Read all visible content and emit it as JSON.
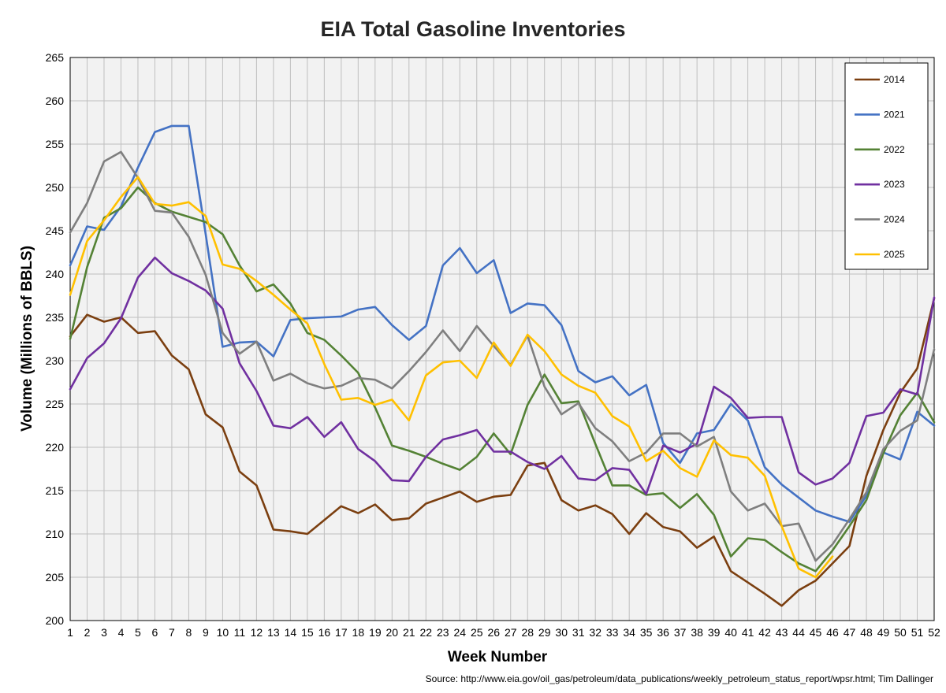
{
  "chart_data": {
    "type": "line",
    "title": "EIA Total Gasoline Inventories",
    "xlabel": "Week Number",
    "ylabel": "Volume (Millions of BBLS)",
    "source": "Source: http://www.eia.gov/oil_gas/petroleum/data_publications/weekly_petroleum_status_report/wpsr.html; Tim Dallinger",
    "xlim": [
      1,
      52
    ],
    "ylim": [
      200,
      265
    ],
    "yticks": [
      200,
      205,
      210,
      215,
      220,
      225,
      230,
      235,
      240,
      245,
      250,
      255,
      260,
      265
    ],
    "grid": true,
    "legend_position": "top-right",
    "x": [
      1,
      2,
      3,
      4,
      5,
      6,
      7,
      8,
      9,
      10,
      11,
      12,
      13,
      14,
      15,
      16,
      17,
      18,
      19,
      20,
      21,
      22,
      23,
      24,
      25,
      26,
      27,
      28,
      29,
      30,
      31,
      32,
      33,
      34,
      35,
      36,
      37,
      38,
      39,
      40,
      41,
      42,
      43,
      44,
      45,
      46,
      47,
      48,
      49,
      50,
      51,
      52
    ],
    "series": [
      {
        "name": "2014",
        "color": "#7B3F10",
        "values": [
          232.8,
          235.3,
          234.5,
          235.0,
          233.2,
          233.4,
          230.6,
          229.0,
          223.8,
          222.3,
          217.2,
          215.6,
          210.5,
          210.3,
          210.0,
          211.6,
          213.2,
          212.4,
          213.4,
          211.6,
          211.8,
          213.5,
          214.2,
          214.9,
          213.7,
          214.3,
          214.5,
          217.9,
          218.2,
          213.9,
          212.7,
          213.3,
          212.3,
          210.0,
          212.4,
          210.8,
          210.3,
          208.4,
          209.7,
          205.7,
          204.4,
          203.1,
          201.7,
          203.5,
          204.6,
          206.6,
          208.6,
          216.7,
          222.0,
          226.3,
          229.1,
          237.2
        ]
      },
      {
        "name": "2021",
        "color": "#4472C4",
        "values": [
          241.0,
          245.5,
          245.1,
          247.8,
          252.3,
          256.4,
          257.1,
          257.1,
          244.6,
          231.6,
          232.1,
          232.2,
          230.5,
          234.7,
          234.9,
          235.0,
          235.1,
          235.9,
          236.2,
          234.1,
          232.4,
          234.0,
          241.0,
          243.0,
          240.1,
          241.6,
          235.5,
          236.6,
          236.4,
          234.1,
          228.8,
          227.5,
          228.2,
          226.0,
          227.2,
          220.5,
          218.2,
          221.6,
          222.0,
          225.0,
          223.1,
          217.7,
          215.7,
          214.2,
          212.7,
          212.0,
          211.4,
          214.4,
          219.4,
          218.6,
          224.1,
          222.5
        ]
      },
      {
        "name": "2022",
        "color": "#548235",
        "values": [
          232.5,
          240.8,
          246.5,
          247.6,
          250.0,
          248.2,
          247.2,
          246.6,
          246.0,
          244.6,
          241.0,
          238.0,
          238.8,
          236.6,
          233.2,
          232.4,
          230.6,
          228.6,
          224.6,
          220.2,
          219.6,
          218.9,
          218.1,
          217.4,
          218.9,
          221.6,
          219.2,
          224.9,
          228.4,
          225.1,
          225.3,
          220.4,
          215.6,
          215.6,
          214.5,
          214.7,
          213.0,
          214.6,
          212.2,
          207.4,
          209.5,
          209.3,
          207.9,
          206.6,
          205.7,
          208.1,
          210.9,
          213.9,
          219.3,
          223.7,
          226.3,
          222.9
        ]
      },
      {
        "name": "2023",
        "color": "#7030A0",
        "values": [
          226.7,
          230.3,
          232.0,
          234.9,
          239.6,
          241.9,
          240.1,
          239.2,
          238.1,
          236.0,
          229.7,
          226.5,
          222.5,
          222.2,
          223.5,
          221.2,
          222.9,
          219.8,
          218.4,
          216.2,
          216.1,
          218.9,
          220.9,
          221.4,
          222.0,
          219.5,
          219.5,
          218.3,
          217.5,
          219.0,
          216.4,
          216.2,
          217.6,
          217.4,
          214.6,
          220.2,
          219.4,
          220.4,
          227.0,
          225.7,
          223.4,
          223.5,
          223.5,
          217.1,
          215.7,
          216.4,
          218.2,
          223.6,
          224.0,
          226.7,
          226.1,
          237.3
        ]
      },
      {
        "name": "2024",
        "color": "#7F7F7F",
        "values": [
          244.8,
          248.2,
          253.0,
          254.1,
          251.1,
          247.3,
          247.1,
          244.3,
          239.9,
          233.2,
          230.8,
          232.2,
          227.7,
          228.5,
          227.4,
          226.8,
          227.1,
          228.0,
          227.8,
          226.8,
          228.8,
          231.0,
          233.5,
          231.1,
          234.0,
          231.7,
          229.5,
          232.9,
          227.0,
          223.8,
          225.1,
          222.2,
          220.7,
          218.4,
          219.4,
          221.6,
          221.6,
          220.1,
          221.2,
          214.9,
          212.7,
          213.5,
          210.9,
          211.2,
          206.9,
          208.8,
          211.7,
          214.8,
          219.8,
          221.9,
          223.1,
          231.3
        ]
      },
      {
        "name": "2025",
        "color": "#FFC000",
        "values": [
          237.6,
          243.8,
          246.2,
          248.9,
          251.2,
          248.1,
          247.9,
          248.3,
          246.7,
          241.1,
          240.6,
          239.2,
          237.6,
          235.9,
          234.3,
          229.6,
          225.5,
          225.7,
          224.9,
          225.5,
          223.1,
          228.3,
          229.8,
          230.0,
          228.0,
          232.1,
          229.4,
          233.0,
          231.1,
          228.4,
          227.1,
          226.3,
          223.6,
          222.4,
          218.4,
          219.6,
          217.6,
          216.6,
          220.8,
          219.1,
          218.8,
          216.7,
          210.9,
          206.0,
          205.0,
          207.4,
          null,
          null,
          null,
          null,
          null,
          null
        ]
      }
    ]
  }
}
